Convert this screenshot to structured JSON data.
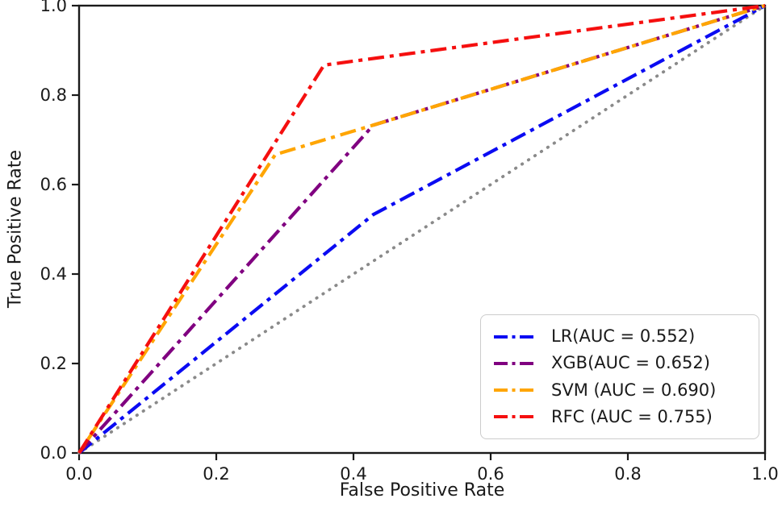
{
  "chart_data": {
    "type": "line",
    "title": "",
    "xlabel": "False Positive Rate",
    "ylabel": "True Positive Rate",
    "xlim": [
      0.0,
      1.0
    ],
    "ylim": [
      0.0,
      1.0
    ],
    "xticks": [
      "0.0",
      "0.2",
      "0.4",
      "0.6",
      "0.8",
      "1.0"
    ],
    "yticks": [
      "0.0",
      "0.2",
      "0.4",
      "0.6",
      "0.8",
      "1.0"
    ],
    "grid": false,
    "legend_position": "lower right",
    "line_style": "dashdot",
    "series": [
      {
        "name": "LR(AUC = 0.552)",
        "model": "LR",
        "auc": 0.552,
        "color": "#0b0bf2",
        "style": "dashdot",
        "x": [
          0,
          0.429,
          1
        ],
        "y": [
          0,
          0.533,
          1
        ]
      },
      {
        "name": "XGB(AUC = 0.652)",
        "model": "XGB",
        "auc": 0.652,
        "color": "#800080",
        "style": "dashdot",
        "x": [
          0,
          0.429,
          1
        ],
        "y": [
          0,
          0.733,
          1
        ]
      },
      {
        "name": "SVM (AUC = 0.690)",
        "model": "SVM",
        "auc": 0.69,
        "color": "#ffa500",
        "style": "dashdot",
        "x": [
          0,
          0.286,
          0.429,
          1
        ],
        "y": [
          0,
          0.667,
          0.733,
          1
        ]
      },
      {
        "name": "RFC (AUC = 0.755)",
        "model": "RFC",
        "auc": 0.755,
        "color": "#f50f0f",
        "style": "dashdot",
        "x": [
          0,
          0.357,
          1
        ],
        "y": [
          0,
          0.867,
          1
        ]
      }
    ],
    "reference_line": {
      "name": "chance-diagonal",
      "color": "#8a8a8a",
      "style": "dotted",
      "x": [
        0,
        1
      ],
      "y": [
        0,
        1
      ]
    },
    "axis_color": "#1a1a1a"
  }
}
